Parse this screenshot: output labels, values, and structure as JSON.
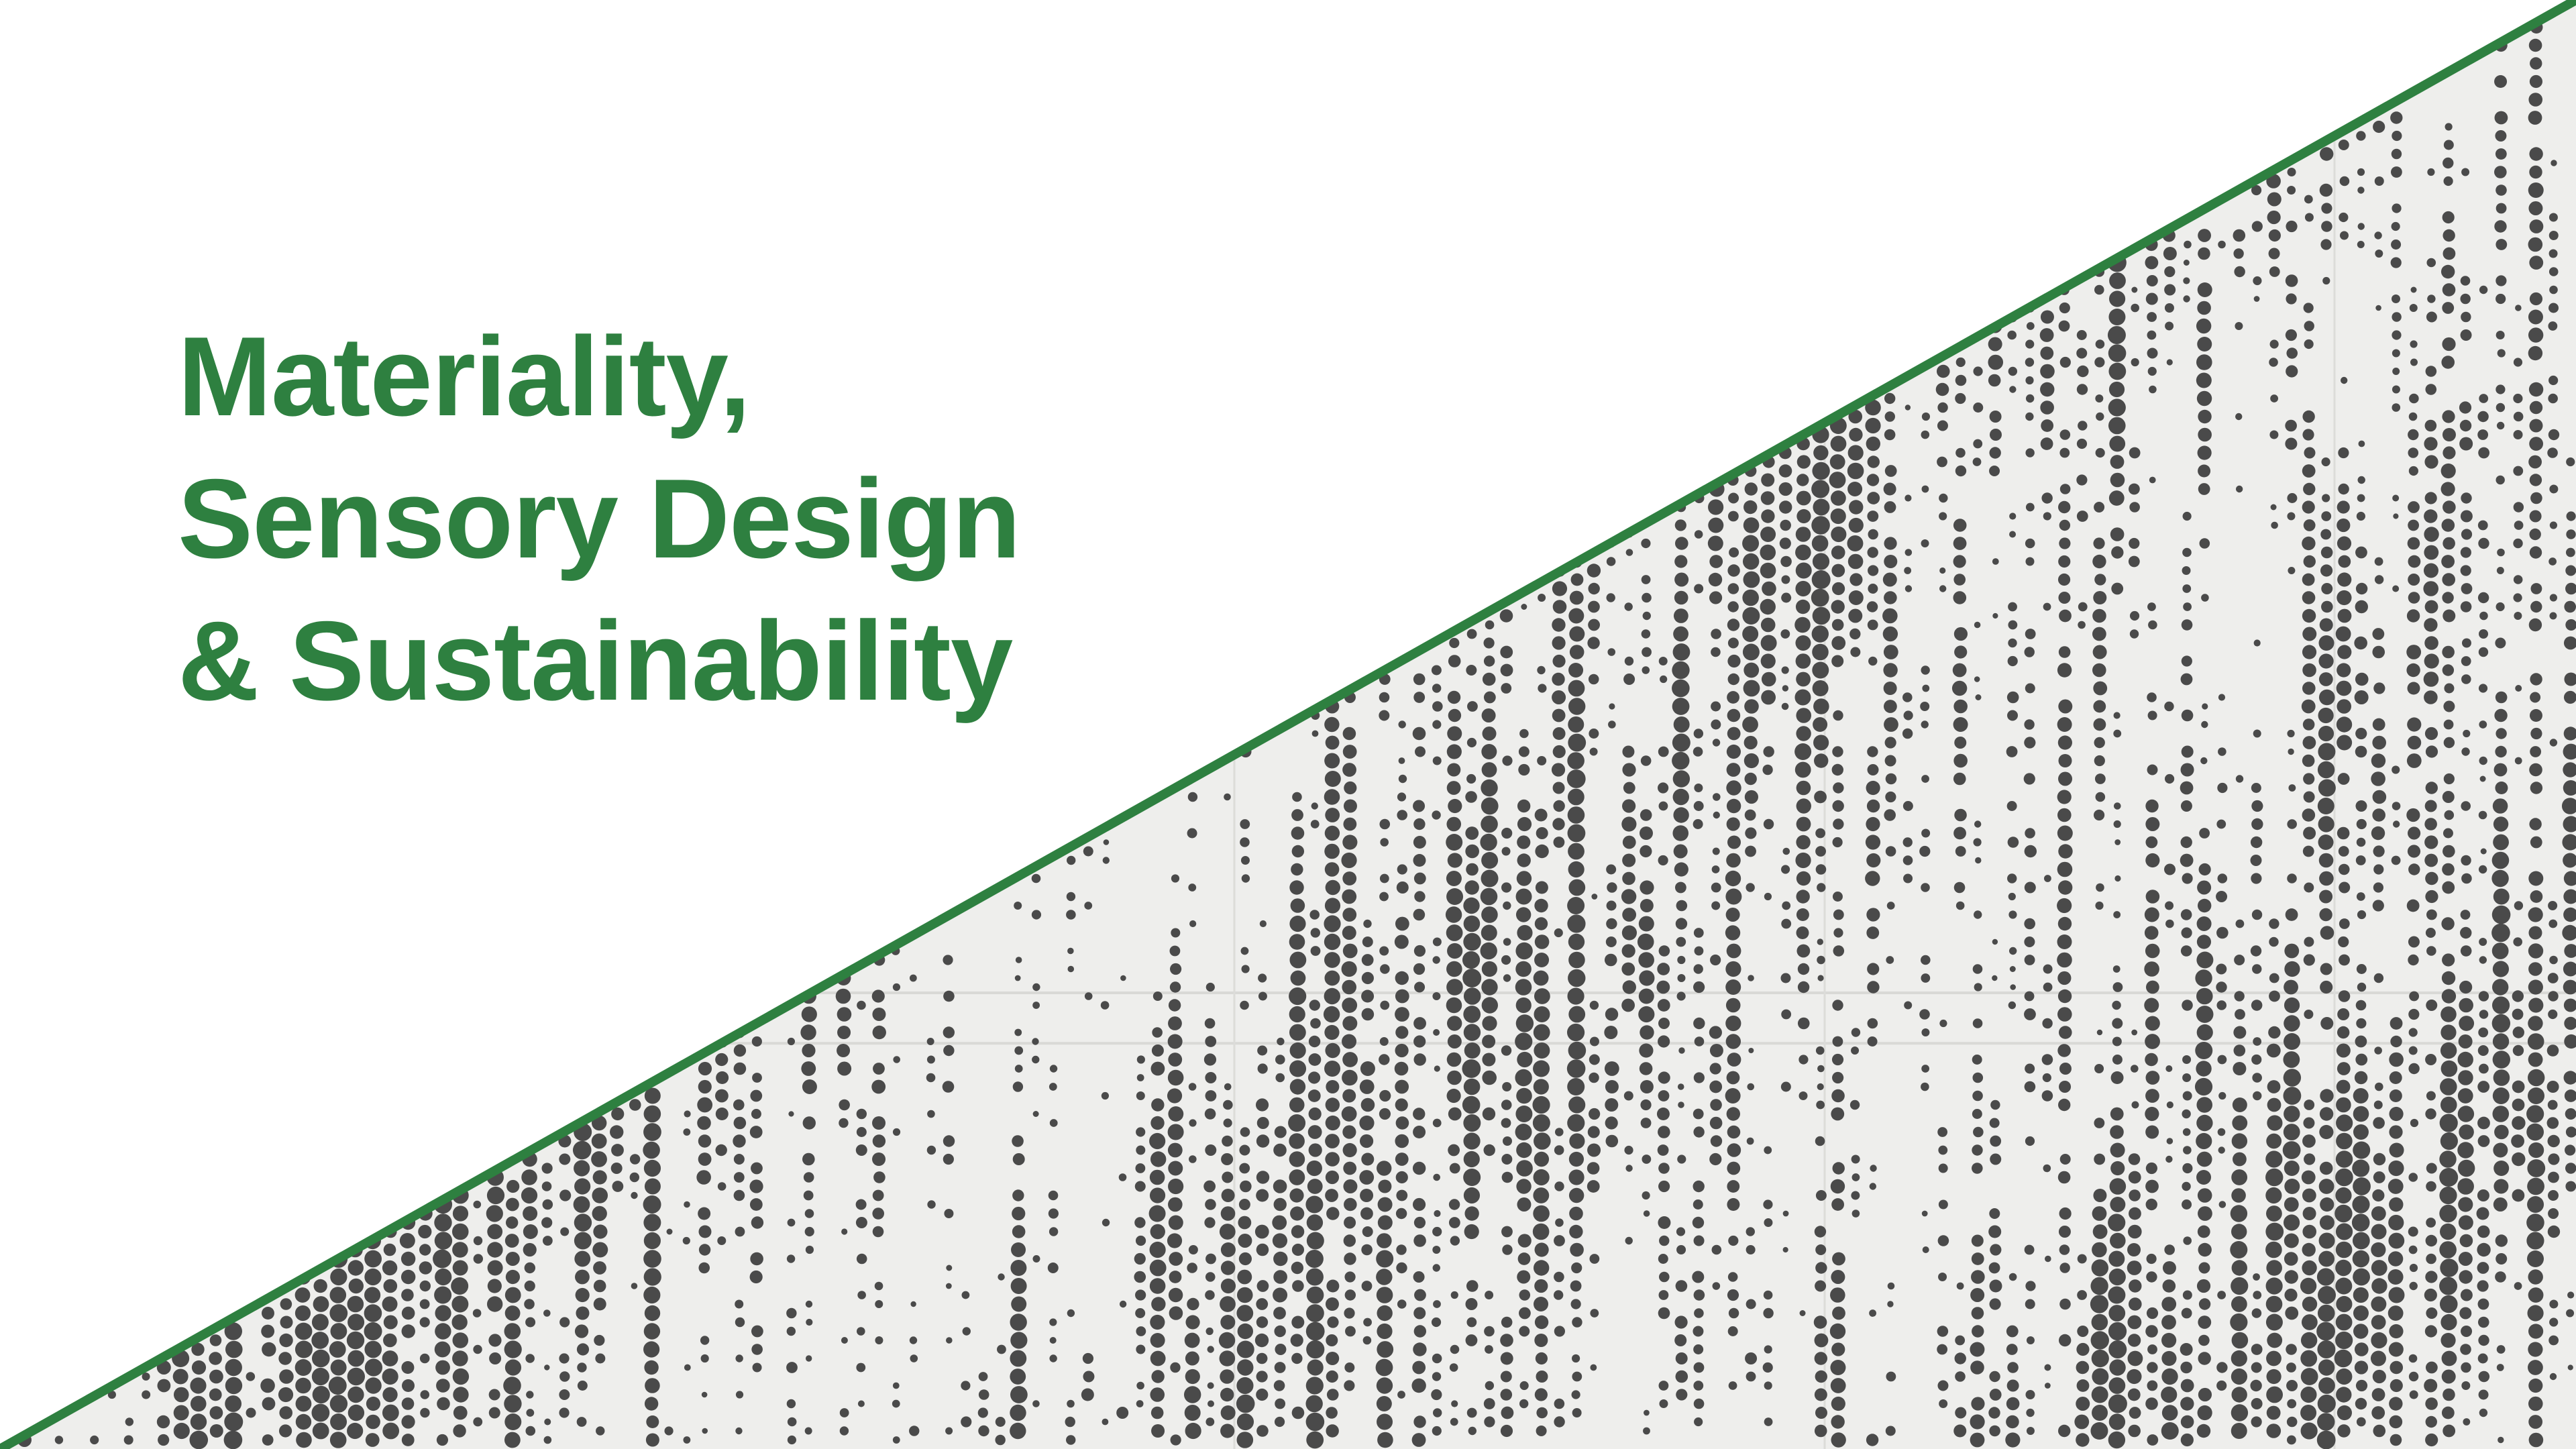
{
  "slide": {
    "title_lines": [
      "Materiality,",
      "Sensory Design",
      "& Sustainability"
    ]
  },
  "colors": {
    "accent_green": "#2e8040",
    "panel_background": "#eeeeec",
    "perforation": "#4a4a4a",
    "page_background": "#ffffff"
  },
  "image": {
    "subject": "perforated-metal-panel-photo"
  }
}
